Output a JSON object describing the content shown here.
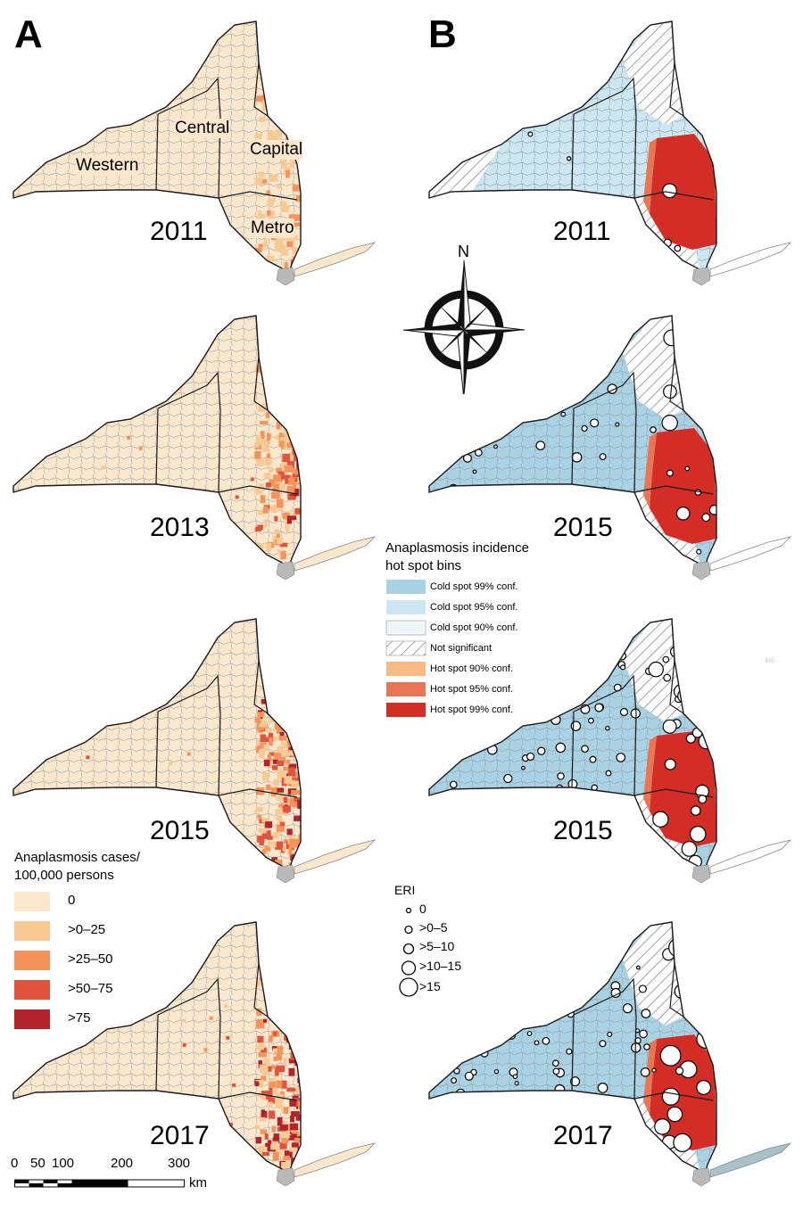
{
  "figure": {
    "panel_a_label": "A",
    "panel_b_label": "B",
    "compass_label": "N",
    "region_names": [
      "Western",
      "Central",
      "Capital",
      "Metro"
    ],
    "colors": {
      "incidence": [
        "#fbe8cc",
        "#f9c994",
        "#f4935a",
        "#e2533c",
        "#b3232a"
      ],
      "hotspot": [
        "#a9d3e4",
        "#cde7f2",
        "#eef6fa",
        "#ffffff",
        "#f9ba83",
        "#ea7552",
        "#d42d26"
      ],
      "tract_line": "#a8a8a8",
      "region_line": "#1a1a1a"
    }
  },
  "panel_a": {
    "maps": [
      {
        "year": "2011",
        "east_level": 2,
        "metro_level": 3,
        "west_speckle": 0
      },
      {
        "year": "2013",
        "east_level": 3,
        "metro_level": 2,
        "west_speckle": 1
      },
      {
        "year": "2015",
        "east_level": 4,
        "metro_level": 3,
        "west_speckle": 1
      },
      {
        "year": "2017",
        "east_level": 4,
        "metro_level": 4,
        "west_speckle": 2
      }
    ],
    "legend": {
      "title_line1": "Anaplasmosis cases/",
      "title_line2": "100,000 persons",
      "items": [
        "0",
        ">0–25",
        ">25–50",
        ">50–75",
        ">75"
      ]
    },
    "scale_bar": {
      "ticks": [
        "0",
        "50",
        "100",
        "200",
        "300"
      ],
      "unit": "km"
    }
  },
  "panel_b": {
    "maps": [
      {
        "year": "2011",
        "eri_density": 12
      },
      {
        "year": "2015",
        "eri_density": 60
      },
      {
        "year": "2015",
        "eri_density": 120
      },
      {
        "year": "2017",
        "eri_density": 100
      }
    ],
    "hotspot_legend": {
      "title_line1": "Anaplasmosis incidence",
      "title_line2": "hot spot bins",
      "items": [
        "Cold spot 99% conf.",
        "Cold spot 95% conf.",
        "Cold spot 90% conf.",
        "Not significant",
        "Hot spot 90% conf.",
        "Hot spot 95% conf.",
        "Hot spot 99% conf."
      ]
    },
    "eri_legend": {
      "title": "ERI",
      "items": [
        "0",
        ">0–5",
        ">5–10",
        ">10–15",
        ">15"
      ]
    },
    "stray_mark": "ERI"
  }
}
